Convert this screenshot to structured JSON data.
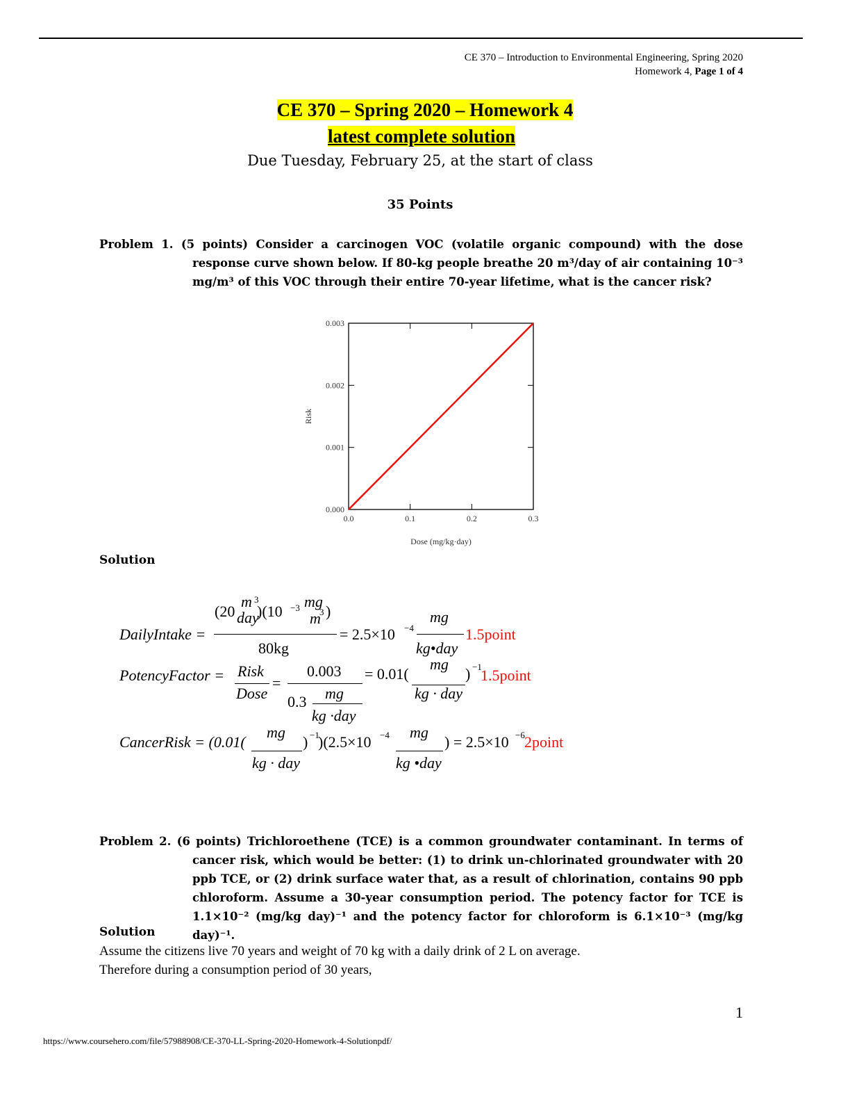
{
  "header": {
    "course_line": "CE 370 – Introduction to Environmental Engineering, Spring 2020",
    "homework_label": "Homework 4,",
    "page_label": "Page 1 of 4"
  },
  "title": {
    "line_1": "CE 370 – Spring 2020 – Homework 4",
    "line_2": "latest complete solution",
    "due": "Due Tuesday, February 25, at the start of class",
    "points": "35 Points"
  },
  "problem_1": {
    "label": "Problem 1. (5 points)",
    "text": "Consider a carcinogen VOC (volatile organic compound) with the dose response curve shown below. If 80-kg people breathe 20 m³/day of air containing 10⁻³ mg/m³ of this VOC through their entire 70-year lifetime, what is the cancer risk?",
    "solution_label": "Solution"
  },
  "chart_data": {
    "type": "line",
    "x": [
      0,
      0.3
    ],
    "values": [
      0,
      0.003
    ],
    "color": "#e8120c",
    "xlim": [
      0,
      0.3
    ],
    "ylim": [
      0,
      0.003
    ],
    "xticks": [
      {
        "value": 0,
        "label": "0.0"
      },
      0.1,
      0.2,
      0.3
    ],
    "yticks": [
      {
        "value": 0,
        "label": "0.000"
      },
      0.001,
      0.002,
      0.003
    ],
    "x_label": "Dose (mg/kg·day)",
    "y_label": "Risk"
  },
  "equations": [
    [
      "DailyIntake =",
      "(20",
      "m",
      "3",
      "day",
      ")(10",
      "−3",
      "mg",
      "m",
      "3",
      ")",
      "80kg",
      "= 2.5×10",
      "−4",
      "mg",
      "kg•day",
      "1.5point"
    ],
    [
      "PotencyFactor =",
      "Risk",
      "Dose",
      "=",
      "0.003",
      "0.3",
      "mg",
      "kg ·day",
      "= 0.01(",
      "mg",
      "kg · day",
      ")",
      "−1",
      "1.5point"
    ],
    [
      "CancerRisk = (0.01(",
      "mg",
      "kg · day",
      ")",
      "−1",
      ")(2.5×10",
      "−4",
      "mg",
      "kg •day",
      ") = 2.5×10",
      "−6",
      "2point"
    ]
  ],
  "problem_2": {
    "label": "Problem 2. (6 points)",
    "text": "Trichloroethene (TCE) is a common groundwater contaminant. In terms of cancer risk, which would be better: (1) to drink un-chlorinated groundwater with 20 ppb TCE, or (2) drink surface water that, as a result of chlorination, contains 90 ppb chloroform. Assume a 30-year consumption period. The potency factor for TCE is 1.1×10⁻² (mg/kg day)⁻¹ and the potency factor for chloroform is 6.1×10⁻³ (mg/kg day)⁻¹.",
    "solution_label": "Solution",
    "solution_lines": [
      "Assume the citizens live 70 years and weight of 70 kg with a daily drink of 2 L on average.",
      "Therefore during a consumption period of 30 years,"
    ]
  },
  "footer": {
    "page_number": "1",
    "url": "https://www.coursehero.com/file/57988908/CE-370-LL-Spring-2020-Homework-4-Solutionpdf/"
  }
}
